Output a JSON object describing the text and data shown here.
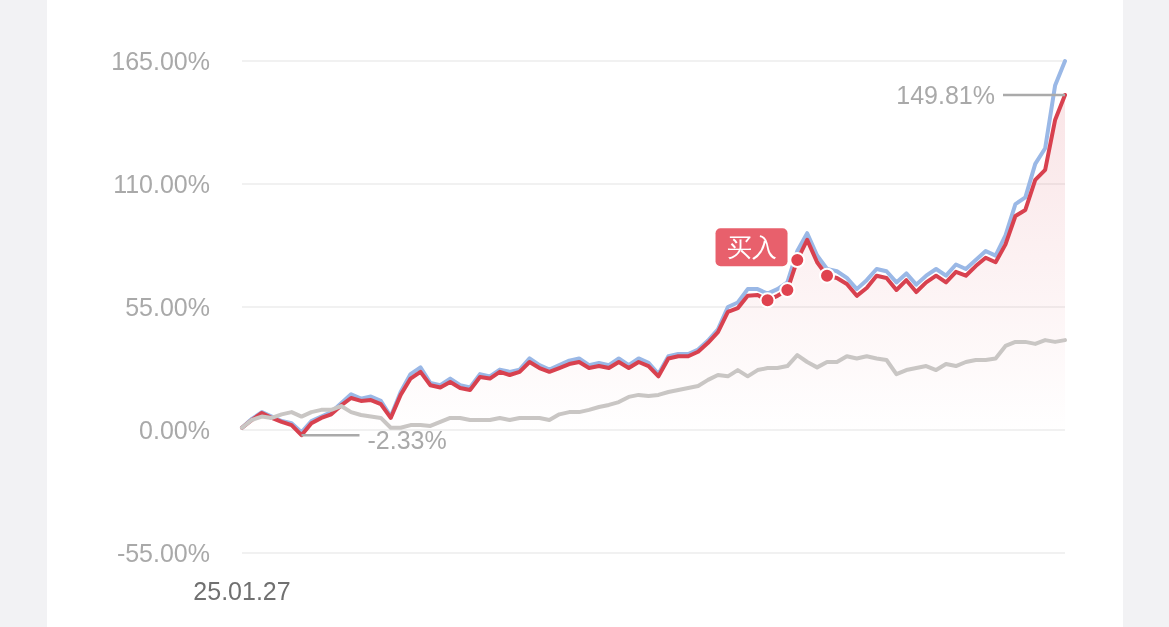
{
  "chart_data": {
    "type": "line",
    "categories": [
      "25.01.27",
      null,
      null,
      null,
      null,
      null,
      null,
      null,
      null,
      null,
      null,
      null,
      null,
      null,
      null,
      null,
      null,
      null,
      null,
      null,
      null,
      null,
      null,
      null,
      null,
      null,
      null,
      null,
      null,
      null,
      null,
      null,
      null,
      null,
      null,
      null,
      null,
      null,
      null,
      null,
      null,
      null,
      null,
      null,
      null,
      null,
      null,
      null,
      null,
      null,
      null,
      null,
      null,
      null,
      null,
      null,
      null,
      null,
      null,
      null,
      null,
      null,
      null,
      null,
      null,
      null,
      null,
      null,
      null,
      null,
      null,
      null,
      null,
      null,
      null,
      null,
      null,
      null,
      null,
      null,
      null,
      null,
      null,
      null
    ],
    "ylim": [
      -55,
      165
    ],
    "yticks": [
      {
        "value": -55,
        "label": "-55.00%"
      },
      {
        "value": 0,
        "label": "0.00%"
      },
      {
        "value": 55,
        "label": "55.00%"
      },
      {
        "value": 110,
        "label": "110.00%"
      },
      {
        "value": 165,
        "label": "165.00%"
      }
    ],
    "grid": "y",
    "series": [
      {
        "color": "#9ab8e6",
        "values": [
          1,
          5,
          8,
          6,
          4,
          3,
          -1,
          4,
          6,
          8,
          12,
          16,
          14,
          15,
          13,
          6,
          17,
          25,
          28,
          21,
          20,
          23,
          20,
          19,
          25,
          24,
          27,
          26,
          27,
          32,
          29,
          27,
          29,
          31,
          32,
          29,
          30,
          29,
          32,
          29,
          32,
          30,
          25,
          33,
          34,
          34,
          36,
          40,
          45,
          55,
          57,
          63,
          63,
          61,
          63,
          66,
          80,
          88,
          78,
          72,
          71,
          68,
          63,
          67,
          72,
          71,
          66,
          70,
          65,
          69,
          72,
          69,
          74,
          72,
          76,
          80,
          78,
          87,
          101,
          104,
          119,
          126,
          154,
          165
        ]
      },
      {
        "type": "area",
        "color": "#d8414f",
        "values": [
          1,
          4.5,
          7.6,
          5.4,
          3.6,
          2.2,
          -2.33,
          3,
          5.4,
          7,
          11,
          14.3,
          13,
          13.4,
          11.6,
          5.4,
          15.7,
          23,
          26,
          20,
          19,
          21.5,
          18.8,
          17.9,
          23.7,
          23,
          26,
          24.6,
          26,
          30.4,
          27.7,
          26,
          27.7,
          29.5,
          30.4,
          27.7,
          28.6,
          27.7,
          30.4,
          27.7,
          30.4,
          28.6,
          24,
          32,
          33,
          33,
          35,
          39,
          43.8,
          52.8,
          54.5,
          60,
          60.4,
          58,
          60,
          62.6,
          76,
          85,
          75,
          69,
          68,
          65.3,
          60,
          63.5,
          69,
          68,
          62.6,
          67,
          61.7,
          66,
          69,
          66,
          70.7,
          69,
          73.3,
          77,
          75,
          83,
          95.7,
          98.4,
          111.8,
          116.3,
          138.6,
          149.81
        ]
      },
      {
        "color": "#c9c6c4",
        "values": [
          1,
          4.5,
          6,
          5.4,
          7,
          8,
          6,
          8,
          9,
          9,
          10.7,
          8,
          6.7,
          6,
          5.4,
          1,
          1,
          2.2,
          2.2,
          1.8,
          3.6,
          5.4,
          5.4,
          4.5,
          4.5,
          4.5,
          5.4,
          4.5,
          5.4,
          5.4,
          5.4,
          4.5,
          7,
          8,
          8,
          9,
          10.3,
          11.2,
          12.5,
          14.8,
          15.7,
          15.2,
          15.7,
          17,
          17.9,
          18.8,
          19.7,
          22.4,
          24.6,
          24,
          26.8,
          24,
          26.8,
          27.7,
          27.7,
          28.6,
          33.5,
          30.4,
          28,
          30.4,
          30.4,
          33,
          32,
          33,
          32,
          31.3,
          25,
          26.8,
          27.7,
          28.6,
          26.8,
          29.5,
          28.6,
          30.4,
          31.3,
          31.3,
          32,
          37.6,
          39.4,
          39.4,
          38.5,
          40.2,
          39.4,
          40.2
        ]
      },
      {
        "type": "scatter",
        "color": "#e0434f",
        "marker": "circle",
        "values": [
          null,
          null,
          null,
          null,
          null,
          null,
          null,
          null,
          null,
          null,
          null,
          null,
          null,
          null,
          null,
          null,
          null,
          null,
          null,
          null,
          null,
          null,
          null,
          null,
          null,
          null,
          null,
          null,
          null,
          null,
          null,
          null,
          null,
          null,
          null,
          null,
          null,
          null,
          null,
          null,
          null,
          null,
          null,
          null,
          null,
          null,
          null,
          null,
          null,
          null,
          null,
          null,
          null,
          58,
          null,
          62.6,
          76,
          null,
          null,
          69,
          null,
          null,
          null,
          null,
          null,
          null,
          null,
          null,
          null,
          null,
          null,
          null,
          null,
          null,
          null,
          null,
          null,
          null,
          null,
          null,
          null,
          null,
          null,
          null
        ]
      }
    ],
    "annotations": [
      "149.81%",
      "-2.33%",
      "买入"
    ]
  }
}
